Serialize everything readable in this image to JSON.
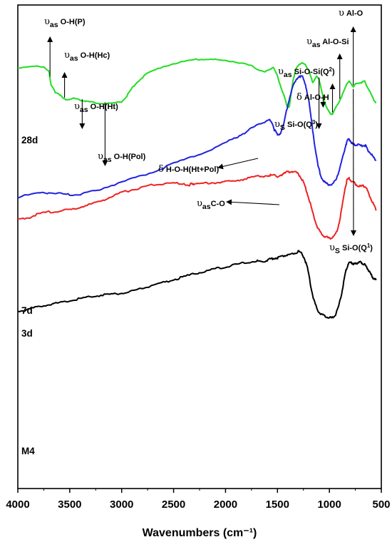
{
  "chart_data": {
    "type": "line",
    "title": "",
    "xlabel": "Wavenumbers (cm⁻¹)",
    "ylabel": "",
    "xlim": [
      4000,
      500
    ],
    "x_reversed": true,
    "x_ticks": [
      4000,
      3500,
      3000,
      2500,
      2000,
      1500,
      1000,
      500
    ],
    "grid": false,
    "legend": "none",
    "series": [
      {
        "name": "28d",
        "color": "#22dd22",
        "points": [
          [
            4000,
            0.87
          ],
          [
            3850,
            0.874
          ],
          [
            3750,
            0.871
          ],
          [
            3700,
            0.864
          ],
          [
            3680,
            0.834
          ],
          [
            3640,
            0.82
          ],
          [
            3600,
            0.816
          ],
          [
            3560,
            0.806
          ],
          [
            3520,
            0.804
          ],
          [
            3460,
            0.807
          ],
          [
            3400,
            0.803
          ],
          [
            3350,
            0.801
          ],
          [
            3300,
            0.799
          ],
          [
            3200,
            0.796
          ],
          [
            3100,
            0.796
          ],
          [
            3000,
            0.8
          ],
          [
            2950,
            0.812
          ],
          [
            2900,
            0.828
          ],
          [
            2850,
            0.841
          ],
          [
            2750,
            0.859
          ],
          [
            2600,
            0.873
          ],
          [
            2450,
            0.881
          ],
          [
            2300,
            0.887
          ],
          [
            2200,
            0.888
          ],
          [
            2100,
            0.887
          ],
          [
            1950,
            0.884
          ],
          [
            1850,
            0.88
          ],
          [
            1750,
            0.874
          ],
          [
            1680,
            0.866
          ],
          [
            1620,
            0.861
          ],
          [
            1580,
            0.867
          ],
          [
            1540,
            0.871
          ],
          [
            1500,
            0.853
          ],
          [
            1460,
            0.826
          ],
          [
            1430,
            0.808
          ],
          [
            1405,
            0.789
          ],
          [
            1385,
            0.79
          ],
          [
            1370,
            0.814
          ],
          [
            1350,
            0.845
          ],
          [
            1320,
            0.868
          ],
          [
            1290,
            0.878
          ],
          [
            1260,
            0.88
          ],
          [
            1230,
            0.876
          ],
          [
            1200,
            0.866
          ],
          [
            1180,
            0.852
          ],
          [
            1160,
            0.84
          ],
          [
            1140,
            0.846
          ],
          [
            1120,
            0.853
          ],
          [
            1100,
            0.847
          ],
          [
            1070,
            0.818
          ],
          [
            1040,
            0.796
          ],
          [
            1010,
            0.781
          ],
          [
            990,
            0.775
          ],
          [
            970,
            0.775
          ],
          [
            940,
            0.787
          ],
          [
            900,
            0.803
          ],
          [
            860,
            0.822
          ],
          [
            830,
            0.838
          ],
          [
            810,
            0.843
          ],
          [
            790,
            0.836
          ],
          [
            770,
            0.831
          ],
          [
            750,
            0.836
          ],
          [
            720,
            0.839
          ],
          [
            690,
            0.84
          ],
          [
            660,
            0.842
          ],
          [
            630,
            0.829
          ],
          [
            600,
            0.816
          ],
          [
            570,
            0.803
          ],
          [
            550,
            0.798
          ]
        ]
      },
      {
        "name": "7d",
        "color": "#2222dd",
        "points": [
          [
            4000,
            0.603
          ],
          [
            3800,
            0.61
          ],
          [
            3700,
            0.612
          ],
          [
            3600,
            0.61
          ],
          [
            3500,
            0.607
          ],
          [
            3400,
            0.609
          ],
          [
            3300,
            0.614
          ],
          [
            3200,
            0.62
          ],
          [
            3000,
            0.633
          ],
          [
            2800,
            0.648
          ],
          [
            2600,
            0.663
          ],
          [
            2400,
            0.68
          ],
          [
            2200,
            0.696
          ],
          [
            2000,
            0.715
          ],
          [
            1900,
            0.726
          ],
          [
            1800,
            0.738
          ],
          [
            1700,
            0.751
          ],
          [
            1640,
            0.758
          ],
          [
            1580,
            0.762
          ],
          [
            1550,
            0.757
          ],
          [
            1530,
            0.742
          ],
          [
            1500,
            0.731
          ],
          [
            1470,
            0.735
          ],
          [
            1440,
            0.753
          ],
          [
            1400,
            0.794
          ],
          [
            1360,
            0.827
          ],
          [
            1320,
            0.845
          ],
          [
            1290,
            0.853
          ],
          [
            1260,
            0.852
          ],
          [
            1230,
            0.836
          ],
          [
            1200,
            0.804
          ],
          [
            1170,
            0.757
          ],
          [
            1140,
            0.708
          ],
          [
            1110,
            0.668
          ],
          [
            1080,
            0.645
          ],
          [
            1050,
            0.634
          ],
          [
            1020,
            0.63
          ],
          [
            990,
            0.628
          ],
          [
            960,
            0.631
          ],
          [
            930,
            0.643
          ],
          [
            900,
            0.661
          ],
          [
            870,
            0.687
          ],
          [
            840,
            0.712
          ],
          [
            820,
            0.722
          ],
          [
            800,
            0.72
          ],
          [
            780,
            0.713
          ],
          [
            760,
            0.711
          ],
          [
            740,
            0.711
          ],
          [
            700,
            0.709
          ],
          [
            670,
            0.71
          ],
          [
            650,
            0.709
          ],
          [
            630,
            0.7
          ],
          [
            600,
            0.692
          ],
          [
            570,
            0.683
          ],
          [
            550,
            0.678
          ]
        ]
      },
      {
        "name": "3d",
        "color": "#ee2222",
        "points": [
          [
            4000,
            0.557
          ],
          [
            3900,
            0.56
          ],
          [
            3800,
            0.568
          ],
          [
            3700,
            0.572
          ],
          [
            3600,
            0.574
          ],
          [
            3500,
            0.576
          ],
          [
            3400,
            0.582
          ],
          [
            3300,
            0.588
          ],
          [
            3200,
            0.595
          ],
          [
            3100,
            0.604
          ],
          [
            3000,
            0.612
          ],
          [
            2900,
            0.618
          ],
          [
            2800,
            0.623
          ],
          [
            2700,
            0.628
          ],
          [
            2600,
            0.63
          ],
          [
            2500,
            0.631
          ],
          [
            2400,
            0.631
          ],
          [
            2350,
            0.624
          ],
          [
            2330,
            0.632
          ],
          [
            2300,
            0.63
          ],
          [
            2200,
            0.631
          ],
          [
            2100,
            0.633
          ],
          [
            2000,
            0.634
          ],
          [
            1900,
            0.637
          ],
          [
            1800,
            0.641
          ],
          [
            1700,
            0.645
          ],
          [
            1600,
            0.647
          ],
          [
            1550,
            0.648
          ],
          [
            1500,
            0.646
          ],
          [
            1450,
            0.65
          ],
          [
            1400,
            0.655
          ],
          [
            1360,
            0.656
          ],
          [
            1320,
            0.654
          ],
          [
            1290,
            0.648
          ],
          [
            1260,
            0.638
          ],
          [
            1230,
            0.622
          ],
          [
            1200,
            0.602
          ],
          [
            1170,
            0.578
          ],
          [
            1140,
            0.556
          ],
          [
            1110,
            0.538
          ],
          [
            1080,
            0.528
          ],
          [
            1050,
            0.522
          ],
          [
            1020,
            0.519
          ],
          [
            990,
            0.518
          ],
          [
            960,
            0.52
          ],
          [
            930,
            0.53
          ],
          [
            900,
            0.555
          ],
          [
            870,
            0.593
          ],
          [
            850,
            0.62
          ],
          [
            830,
            0.638
          ],
          [
            810,
            0.642
          ],
          [
            790,
            0.636
          ],
          [
            760,
            0.632
          ],
          [
            740,
            0.628
          ],
          [
            700,
            0.624
          ],
          [
            670,
            0.626
          ],
          [
            650,
            0.624
          ],
          [
            630,
            0.614
          ],
          [
            600,
            0.6
          ],
          [
            570,
            0.585
          ],
          [
            550,
            0.575
          ]
        ]
      },
      {
        "name": "M4",
        "color": "#000000",
        "points": [
          [
            4000,
            0.367
          ],
          [
            3900,
            0.37
          ],
          [
            3800,
            0.376
          ],
          [
            3700,
            0.381
          ],
          [
            3600,
            0.384
          ],
          [
            3500,
            0.388
          ],
          [
            3400,
            0.393
          ],
          [
            3300,
            0.397
          ],
          [
            3200,
            0.4
          ],
          [
            3100,
            0.402
          ],
          [
            3000,
            0.404
          ],
          [
            2900,
            0.409
          ],
          [
            2800,
            0.414
          ],
          [
            2700,
            0.421
          ],
          [
            2600,
            0.426
          ],
          [
            2500,
            0.432
          ],
          [
            2400,
            0.438
          ],
          [
            2300,
            0.444
          ],
          [
            2200,
            0.449
          ],
          [
            2100,
            0.454
          ],
          [
            2000,
            0.459
          ],
          [
            1900,
            0.463
          ],
          [
            1800,
            0.467
          ],
          [
            1700,
            0.471
          ],
          [
            1660,
            0.469
          ],
          [
            1620,
            0.47
          ],
          [
            1580,
            0.474
          ],
          [
            1540,
            0.476
          ],
          [
            1500,
            0.477
          ],
          [
            1460,
            0.48
          ],
          [
            1420,
            0.483
          ],
          [
            1380,
            0.484
          ],
          [
            1340,
            0.487
          ],
          [
            1300,
            0.49
          ],
          [
            1270,
            0.487
          ],
          [
            1240,
            0.476
          ],
          [
            1210,
            0.455
          ],
          [
            1180,
            0.42
          ],
          [
            1150,
            0.39
          ],
          [
            1120,
            0.372
          ],
          [
            1090,
            0.362
          ],
          [
            1060,
            0.358
          ],
          [
            1030,
            0.355
          ],
          [
            1000,
            0.353
          ],
          [
            970,
            0.353
          ],
          [
            940,
            0.36
          ],
          [
            910,
            0.378
          ],
          [
            880,
            0.405
          ],
          [
            860,
            0.43
          ],
          [
            840,
            0.452
          ],
          [
            820,
            0.464
          ],
          [
            800,
            0.467
          ],
          [
            780,
            0.466
          ],
          [
            760,
            0.464
          ],
          [
            740,
            0.465
          ],
          [
            720,
            0.468
          ],
          [
            700,
            0.468
          ],
          [
            680,
            0.466
          ],
          [
            660,
            0.463
          ],
          [
            640,
            0.458
          ],
          [
            620,
            0.45
          ],
          [
            600,
            0.442
          ],
          [
            580,
            0.436
          ],
          [
            560,
            0.432
          ],
          [
            550,
            0.431
          ]
        ]
      }
    ],
    "annotations": {
      "up": [
        {
          "x": 3690,
          "main": "υ",
          "sub": "as",
          "text": " O-H(P)"
        },
        {
          "x": 3550,
          "main": "υ",
          "sub": "as",
          "text": " O-H(Hc)"
        },
        {
          "x": 3380,
          "main": "υ",
          "sub": "as",
          "text": " O-H(Ht)"
        },
        {
          "x": 3160,
          "main": "υ",
          "sub": "as",
          "text": " O-H(Pol)"
        },
        {
          "x": 1100,
          "main": "υ",
          "sub": "S",
          "text": " Si-O(Q",
          "sup": "3",
          "post": ")"
        },
        {
          "x": 1060,
          "main": "δ",
          "text": " Al-O-H"
        },
        {
          "x": 970,
          "main": "υ",
          "sub": "as",
          "text": " Si-O-Si(Q",
          "sup": "2",
          "post": ")"
        },
        {
          "x": 900,
          "main": "υ",
          "sub": "as",
          "text": " Al-O-Si"
        },
        {
          "x": 770,
          "main": "υ",
          "text": " Al-O"
        }
      ],
      "left": [
        {
          "main": "δ",
          "text": " H-O-H(Ht+Pol)"
        },
        {
          "main": "υ",
          "sub": "as",
          "text": "C-O"
        }
      ],
      "down": [
        {
          "x": 770,
          "main": "υ",
          "sub": "S",
          "text": " Si-O(Q",
          "sup": "1",
          "post": ")"
        }
      ]
    }
  }
}
